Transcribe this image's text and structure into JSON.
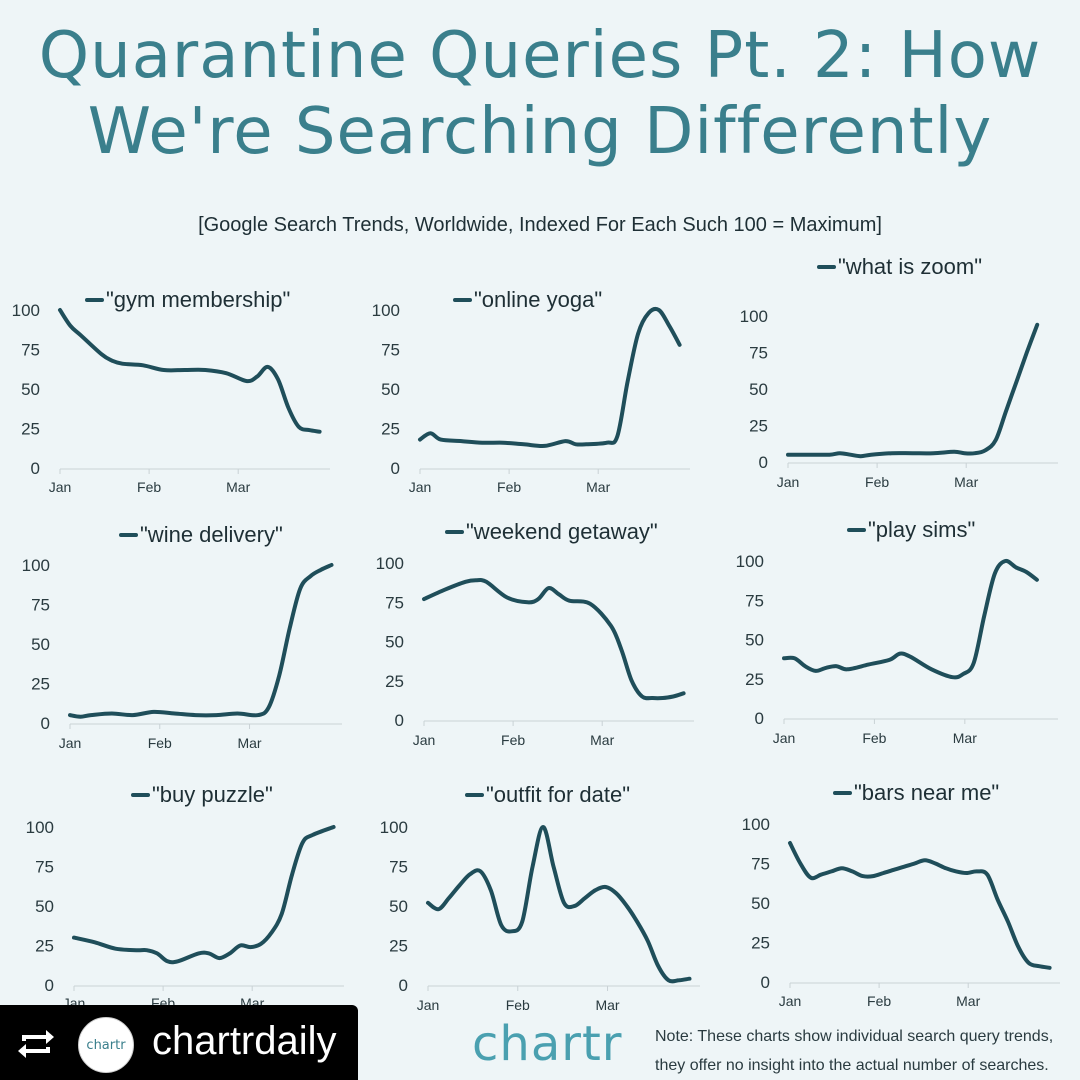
{
  "title": "Quarantine Queries Pt. 2: How We're Searching Differently",
  "subtitle": "[Google Search Trends, Worldwide, Indexed For Each Such 100 = Maximum]",
  "colors": {
    "line": "#1f4e5a",
    "title": "#3a7f8c",
    "brand": "#4aa0b0",
    "background": "#eef5f7"
  },
  "footer": {
    "repost_icon": "repost-icon",
    "avatar_text": "chartr",
    "handle": "chartrdaily",
    "brand": "chartr",
    "note_line1": "Note: These charts show individual search query trends,",
    "note_line2": "they offer no insight into the actual number of searches."
  },
  "chart_data": [
    {
      "type": "line",
      "legend": "\"gym membership\"",
      "yticks": [
        0,
        25,
        50,
        75,
        100
      ],
      "xticks": [
        "Jan",
        "Feb",
        "Mar"
      ],
      "ylim": [
        0,
        100
      ],
      "xlim": [
        0,
        13
      ],
      "x": [
        0,
        0.5,
        1,
        2,
        2.5,
        3,
        4,
        5,
        6,
        7,
        8,
        9,
        9.5,
        10,
        10.5,
        11,
        11.5,
        12,
        12.5
      ],
      "y": [
        100,
        90,
        84,
        72,
        68,
        66,
        65,
        62,
        62,
        62,
        60,
        55,
        58,
        64,
        56,
        38,
        26,
        24,
        23
      ]
    },
    {
      "type": "line",
      "legend": "\"online yoga\"",
      "yticks": [
        0,
        25,
        50,
        75,
        100
      ],
      "xticks": [
        "Jan",
        "Feb",
        "Mar"
      ],
      "ylim": [
        0,
        100
      ],
      "xlim": [
        0,
        13
      ],
      "x": [
        0,
        0.5,
        1,
        2,
        3,
        4,
        5,
        6,
        7,
        7.5,
        8,
        9,
        9.5,
        10,
        10.5,
        11,
        11.5,
        12,
        12.5
      ],
      "y": [
        18,
        22,
        18,
        17,
        16,
        16,
        15,
        14,
        17,
        15,
        15,
        16,
        20,
        55,
        85,
        98,
        100,
        90,
        78
      ]
    },
    {
      "type": "line",
      "legend": "\"what is zoom\"",
      "yticks": [
        0,
        25,
        50,
        75,
        100
      ],
      "xticks": [
        "Jan",
        "Feb",
        "Mar"
      ],
      "ylim": [
        0,
        100
      ],
      "xlim": [
        0,
        13
      ],
      "x": [
        0,
        1,
        2,
        2.5,
        3,
        3.5,
        4,
        5,
        6,
        7,
        8,
        8.5,
        9,
        9.5,
        10,
        10.5,
        11,
        11.5,
        12
      ],
      "y": [
        5,
        5,
        5,
        6,
        5,
        4,
        5,
        6,
        6,
        6,
        7,
        6,
        6,
        8,
        15,
        35,
        55,
        75,
        94
      ]
    },
    {
      "type": "line",
      "legend": "\"wine delivery\"",
      "yticks": [
        0,
        25,
        50,
        75,
        100
      ],
      "xticks": [
        "Jan",
        "Feb",
        "Mar"
      ],
      "ylim": [
        0,
        100
      ],
      "xlim": [
        0,
        13
      ],
      "x": [
        0,
        0.5,
        1,
        2,
        3,
        4,
        5,
        6,
        7,
        8,
        9,
        9.5,
        10,
        10.5,
        11,
        11.5,
        12,
        12.5
      ],
      "y": [
        5,
        4,
        5,
        6,
        5,
        7,
        6,
        5,
        5,
        6,
        5,
        10,
        30,
        60,
        85,
        93,
        97,
        100
      ]
    },
    {
      "type": "line",
      "legend": "\"weekend getaway\"",
      "yticks": [
        0,
        25,
        50,
        75,
        100
      ],
      "xticks": [
        "Jan",
        "Feb",
        "Mar"
      ],
      "ylim": [
        0,
        100
      ],
      "xlim": [
        0,
        13
      ],
      "x": [
        0,
        1,
        2,
        2.5,
        3,
        4,
        5,
        5.5,
        6,
        6.5,
        7,
        8,
        9,
        9.5,
        10,
        10.5,
        11,
        11.5,
        12,
        12.5
      ],
      "y": [
        77,
        83,
        88,
        89,
        88,
        78,
        75,
        77,
        84,
        80,
        76,
        74,
        60,
        45,
        25,
        15,
        14,
        14,
        15,
        17
      ]
    },
    {
      "type": "line",
      "legend": "\"play sims\"",
      "yticks": [
        0,
        25,
        50,
        75,
        100
      ],
      "xticks": [
        "Jan",
        "Feb",
        "Mar"
      ],
      "ylim": [
        0,
        100
      ],
      "xlim": [
        0,
        13
      ],
      "x": [
        0,
        0.5,
        1,
        1.5,
        2,
        2.5,
        3,
        4,
        5,
        5.5,
        6,
        7,
        8,
        8.5,
        9,
        9.5,
        10,
        10.5,
        11,
        11.5,
        12
      ],
      "y": [
        38,
        38,
        33,
        30,
        32,
        33,
        31,
        34,
        37,
        41,
        39,
        31,
        26,
        28,
        35,
        65,
        92,
        100,
        96,
        93,
        88
      ]
    },
    {
      "type": "line",
      "legend": "\"buy puzzle\"",
      "yticks": [
        0,
        25,
        50,
        75,
        100
      ],
      "xticks": [
        "Jan",
        "Feb",
        "Mar"
      ],
      "ylim": [
        0,
        100
      ],
      "xlim": [
        0,
        13
      ],
      "x": [
        0,
        1,
        2,
        3,
        3.5,
        4,
        4.5,
        5,
        6,
        6.5,
        7,
        7.5,
        8,
        8.5,
        9,
        9.5,
        10,
        10.5,
        11,
        11.5,
        12.5
      ],
      "y": [
        30,
        27,
        23,
        22,
        22,
        20,
        15,
        15,
        20,
        20,
        17,
        20,
        25,
        24,
        26,
        33,
        45,
        70,
        90,
        95,
        100
      ]
    },
    {
      "type": "line",
      "legend": "\"outfit for date\"",
      "yticks": [
        0,
        25,
        50,
        75,
        100
      ],
      "xticks": [
        "Jan",
        "Feb",
        "Mar"
      ],
      "ylim": [
        0,
        100
      ],
      "xlim": [
        0,
        13
      ],
      "x": [
        0,
        0.5,
        1,
        1.5,
        2,
        2.5,
        3,
        3.5,
        4,
        4.5,
        5,
        5.5,
        6,
        6.5,
        7,
        7.5,
        8,
        8.5,
        9,
        9.5,
        10,
        10.5,
        11,
        11.5,
        12,
        12.5
      ],
      "y": [
        52,
        48,
        55,
        63,
        70,
        72,
        60,
        38,
        34,
        40,
        75,
        100,
        75,
        52,
        50,
        55,
        60,
        62,
        58,
        50,
        40,
        28,
        12,
        3,
        3,
        4
      ]
    },
    {
      "type": "line",
      "legend": "\"bars near me\"",
      "yticks": [
        0,
        25,
        50,
        75,
        100
      ],
      "xticks": [
        "Jan",
        "Feb",
        "Mar"
      ],
      "ylim": [
        0,
        100
      ],
      "xlim": [
        0,
        13
      ],
      "x": [
        0,
        0.5,
        1,
        1.5,
        2,
        2.5,
        3,
        3.5,
        4,
        4.5,
        5,
        5.5,
        6,
        6.5,
        7,
        7.5,
        8,
        8.5,
        9,
        9.5,
        10,
        10.5,
        11,
        11.5,
        12,
        12.5
      ],
      "y": [
        88,
        75,
        66,
        68,
        70,
        72,
        70,
        67,
        67,
        69,
        71,
        73,
        75,
        77,
        75,
        72,
        70,
        69,
        70,
        68,
        52,
        38,
        22,
        12,
        10,
        9
      ]
    }
  ]
}
